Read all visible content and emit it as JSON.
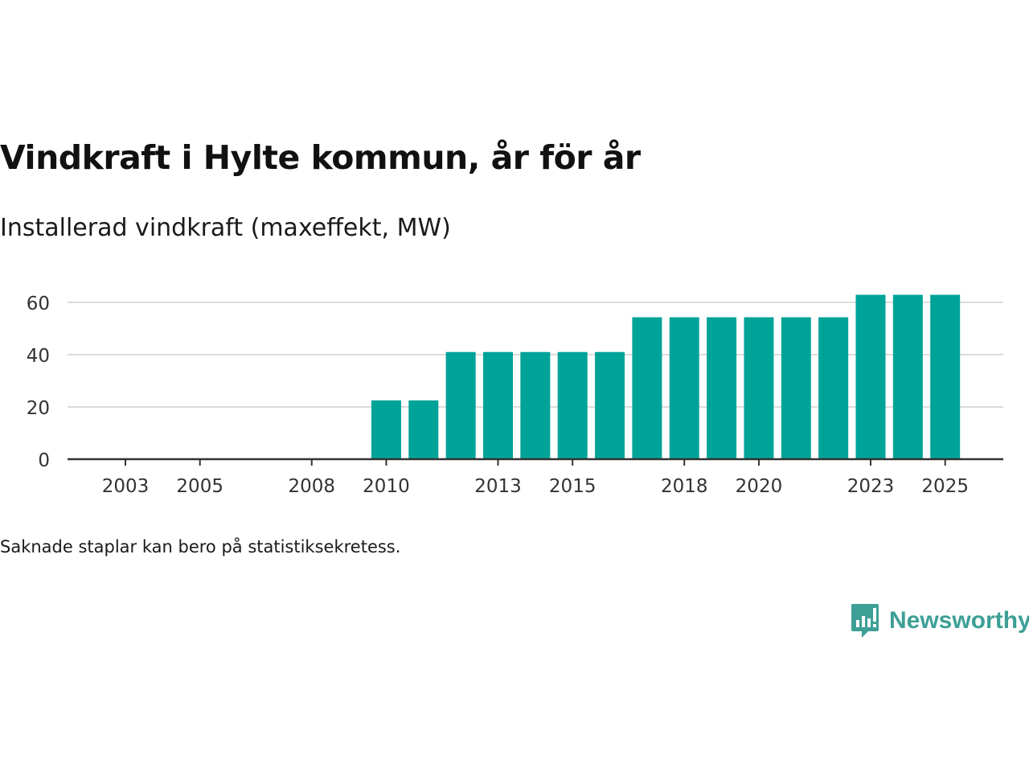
{
  "title": "Vindkraft i Hylte kommun, år för år",
  "subtitle": "Installerad vindkraft (maxeffekt, MW)",
  "footnote": "Saknade staplar kan bero på statistiksekretess.",
  "brand": {
    "name": "Newsworthy",
    "color": "#3d9f95"
  },
  "chart_data": {
    "type": "bar",
    "title": "Vindkraft i Hylte kommun, år för år",
    "subtitle": "Installerad vindkraft (maxeffekt, MW)",
    "xlabel": "",
    "ylabel": "Installerad vindkraft (maxeffekt, MW)",
    "color": "#00a398",
    "grid": true,
    "ylim": [
      0,
      66
    ],
    "yticks": [
      0,
      20,
      40,
      60
    ],
    "xticks": [
      2003,
      2005,
      2008,
      2010,
      2013,
      2015,
      2018,
      2020,
      2023,
      2025
    ],
    "categories": [
      2002,
      2003,
      2004,
      2005,
      2006,
      2007,
      2008,
      2009,
      2010,
      2011,
      2012,
      2013,
      2014,
      2015,
      2016,
      2017,
      2018,
      2019,
      2020,
      2021,
      2022,
      2023,
      2024,
      2025
    ],
    "values": [
      0,
      0,
      0,
      0,
      0,
      0,
      0,
      0,
      22.5,
      22.5,
      41,
      41,
      41,
      41,
      41,
      54.3,
      54.3,
      54.3,
      54.3,
      54.3,
      54.3,
      62.9,
      62.9,
      62.9
    ]
  }
}
